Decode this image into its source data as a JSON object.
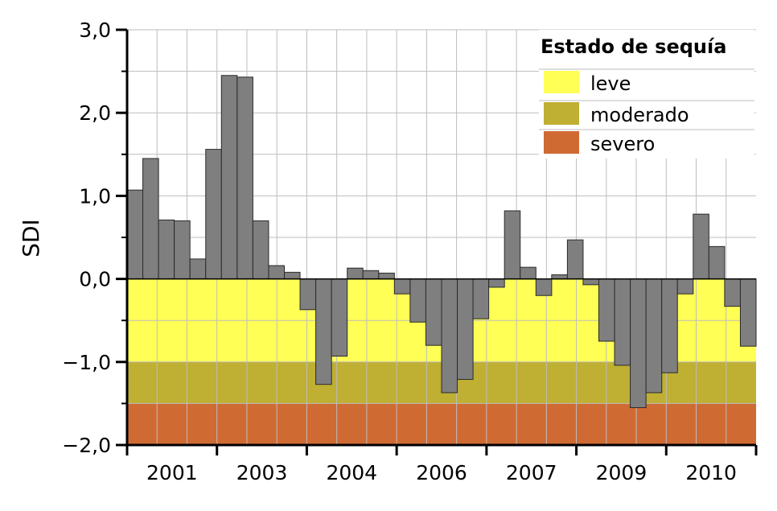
{
  "chart_data": {
    "type": "bar",
    "title": "",
    "xlabel": "",
    "ylabel": "SDI",
    "ylim": [
      -2.0,
      3.0
    ],
    "y_ticks": [
      -2.0,
      -1.0,
      0.0,
      1.0,
      2.0,
      3.0
    ],
    "y_tick_labels": [
      "−2,0",
      "−1,0",
      "0,0",
      "1,0",
      "2,0",
      "3,0"
    ],
    "y_minor_step": 0.5,
    "x_tick_labels": [
      "2001",
      "2003",
      "2004",
      "2006",
      "2007",
      "2009",
      "2010"
    ],
    "grid": true,
    "bar_color": "#7f7f7f",
    "values": [
      1.07,
      1.45,
      0.71,
      0.7,
      0.24,
      1.56,
      2.45,
      2.43,
      0.7,
      0.16,
      0.08,
      -0.37,
      -1.27,
      -0.93,
      0.13,
      0.1,
      0.07,
      -0.18,
      -0.52,
      -0.8,
      -1.37,
      -1.21,
      -0.48,
      -0.1,
      0.82,
      0.14,
      -0.2,
      0.05,
      0.47,
      -0.07,
      -0.75,
      -1.04,
      -1.55,
      -1.37,
      -1.13,
      -0.18,
      0.78,
      0.39,
      -0.33,
      -0.81
    ],
    "bands": [
      {
        "name": "leve",
        "from": 0.0,
        "to": -1.0,
        "color": "#ffff55"
      },
      {
        "name": "moderado",
        "from": -1.0,
        "to": -1.5,
        "color": "#bfaf33"
      },
      {
        "name": "severo",
        "from": -1.5,
        "to": -2.0,
        "color": "#d06a33"
      }
    ],
    "legend": {
      "title": "Estado de sequía",
      "placement": "top-right",
      "entries": [
        "leve",
        "moderado",
        "severo"
      ]
    }
  }
}
